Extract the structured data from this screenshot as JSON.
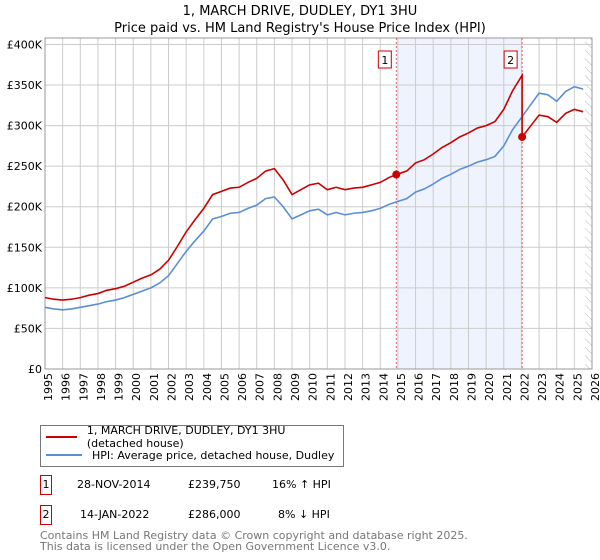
{
  "colors": {
    "property": "#cc0000",
    "hpi": "#5b8fd4",
    "shade": "#eef3fd",
    "grid": "#cccccc"
  },
  "chart_data": {
    "type": "line",
    "title": "1, MARCH DRIVE, DUDLEY, DY1 3HU",
    "subtitle": "Price paid vs. HM Land Registry's House Price Index (HPI)",
    "xlim": [
      1995,
      2026
    ],
    "ylim": [
      0,
      408000
    ],
    "x_ticks": [
      1995,
      1996,
      1997,
      1998,
      1999,
      2000,
      2001,
      2002,
      2003,
      2004,
      2005,
      2006,
      2007,
      2008,
      2009,
      2010,
      2011,
      2012,
      2013,
      2014,
      2015,
      2016,
      2017,
      2018,
      2019,
      2020,
      2021,
      2022,
      2023,
      2024,
      2025,
      2026
    ],
    "y_ticks": [
      {
        "v": 0,
        "label": "£0"
      },
      {
        "v": 50000,
        "label": "£50K"
      },
      {
        "v": 100000,
        "label": "£100K"
      },
      {
        "v": 150000,
        "label": "£150K"
      },
      {
        "v": 200000,
        "label": "£200K"
      },
      {
        "v": 250000,
        "label": "£250K"
      },
      {
        "v": 300000,
        "label": "£300K"
      },
      {
        "v": 350000,
        "label": "£350K"
      },
      {
        "v": 400000,
        "label": "£400K"
      }
    ],
    "grid": true,
    "shaded_range": [
      2014.91,
      2022.04
    ],
    "hatched_from": 2025.6,
    "series": [
      {
        "name": "1, MARCH DRIVE, DUDLEY, DY1 3HU (detached house)",
        "color": "#cc0000",
        "x": [
          1995,
          1995.5,
          1996,
          1996.5,
          1997,
          1997.5,
          1998,
          1998.5,
          1999,
          1999.5,
          2000,
          2000.5,
          2001,
          2001.5,
          2002,
          2002.5,
          2003,
          2003.5,
          2004,
          2004.5,
          2005,
          2005.5,
          2006,
          2006.5,
          2007,
          2007.5,
          2008,
          2008.5,
          2009,
          2009.5,
          2010,
          2010.5,
          2011,
          2011.5,
          2012,
          2012.5,
          2013,
          2013.5,
          2014,
          2014.5,
          2014.91,
          2015.5,
          2016,
          2016.5,
          2017,
          2017.5,
          2018,
          2018.5,
          2019,
          2019.5,
          2020,
          2020.5,
          2021,
          2021.5,
          2022.04,
          2022.04,
          2022.5,
          2023,
          2023.5,
          2024,
          2024.5,
          2025,
          2025.5
        ],
        "y": [
          88000,
          86000,
          85000,
          86000,
          88000,
          91000,
          93000,
          97000,
          99000,
          102000,
          107000,
          112000,
          116000,
          123000,
          134000,
          151000,
          169000,
          184000,
          198000,
          215000,
          219000,
          223000,
          224000,
          230000,
          235000,
          244000,
          247000,
          233000,
          215000,
          221000,
          227000,
          229000,
          221000,
          224000,
          221000,
          223000,
          224000,
          227000,
          230000,
          236000,
          239750,
          244000,
          254000,
          258000,
          265000,
          273000,
          279000,
          286000,
          291000,
          297000,
          300000,
          305000,
          320000,
          343000,
          362000,
          286000,
          299000,
          313000,
          311000,
          304000,
          315000,
          320000,
          317000
        ]
      },
      {
        "name": "HPI: Average price, detached house, Dudley",
        "color": "#5b8fd4",
        "x": [
          1995,
          1995.5,
          1996,
          1996.5,
          1997,
          1997.5,
          1998,
          1998.5,
          1999,
          1999.5,
          2000,
          2000.5,
          2001,
          2001.5,
          2002,
          2002.5,
          2003,
          2003.5,
          2004,
          2004.5,
          2005,
          2005.5,
          2006,
          2006.5,
          2007,
          2007.5,
          2008,
          2008.5,
          2009,
          2009.5,
          2010,
          2010.5,
          2011,
          2011.5,
          2012,
          2012.5,
          2013,
          2013.5,
          2014,
          2014.5,
          2014.91,
          2015.5,
          2016,
          2016.5,
          2017,
          2017.5,
          2018,
          2018.5,
          2019,
          2019.5,
          2020,
          2020.5,
          2021,
          2021.5,
          2022.04,
          2022.5,
          2023,
          2023.5,
          2024,
          2024.5,
          2025,
          2025.5
        ],
        "y": [
          76000,
          74000,
          73000,
          74000,
          76000,
          78000,
          80000,
          83000,
          85000,
          88000,
          92000,
          96000,
          100000,
          106000,
          115000,
          130000,
          145000,
          158000,
          170000,
          185000,
          188000,
          192000,
          193000,
          198000,
          202000,
          210000,
          212000,
          200000,
          185000,
          190000,
          195000,
          197000,
          190000,
          193000,
          190000,
          192000,
          193000,
          195000,
          198000,
          203000,
          206000,
          210000,
          218000,
          222000,
          228000,
          235000,
          240000,
          246000,
          250000,
          255000,
          258000,
          262000,
          275000,
          295000,
          311000,
          325000,
          340000,
          338000,
          330000,
          342000,
          348000,
          345000
        ]
      }
    ],
    "sales": [
      {
        "label": "1",
        "x": 2014.91,
        "y": 239750
      },
      {
        "label": "2",
        "x": 2022.04,
        "y": 286000
      }
    ]
  },
  "legend": {
    "property": "1, MARCH DRIVE, DUDLEY, DY1 3HU (detached house)",
    "hpi": "HPI: Average price, detached house, Dudley"
  },
  "table": [
    {
      "num": "1",
      "date": "28-NOV-2014",
      "price": "£239,750",
      "hpi": "16% ↑ HPI"
    },
    {
      "num": "2",
      "date": "14-JAN-2022",
      "price": "£286,000",
      "hpi": "8% ↓ HPI"
    }
  ],
  "footer": {
    "line1": "Contains HM Land Registry data © Crown copyright and database right 2025.",
    "line2": "This data is licensed under the Open Government Licence v3.0."
  }
}
